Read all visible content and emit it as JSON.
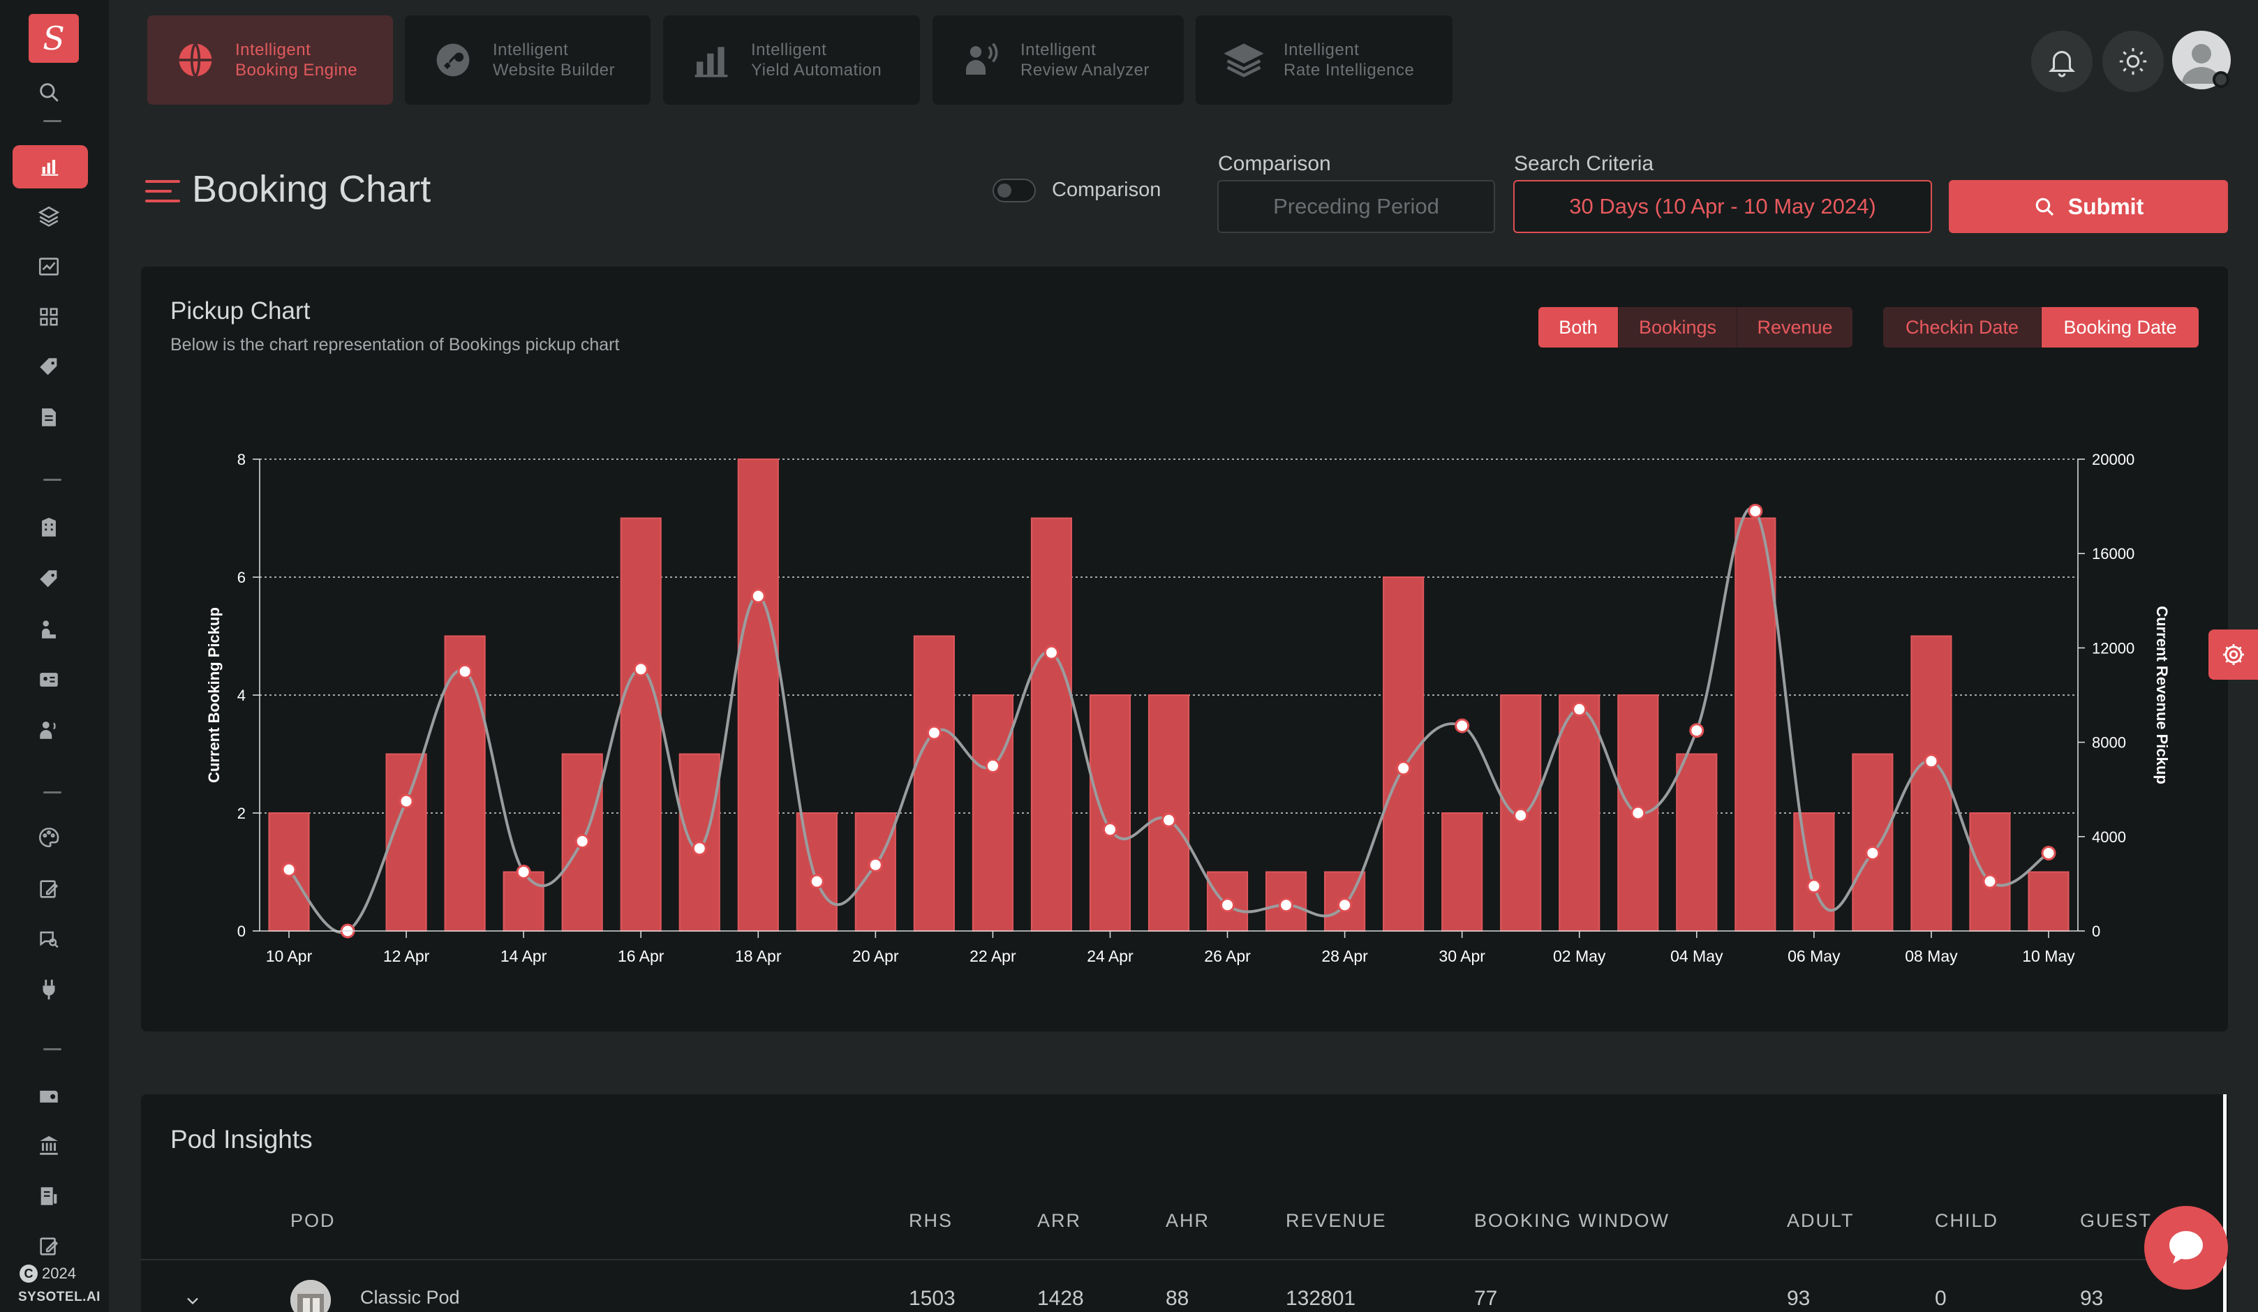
{
  "brand": {
    "copyright_year": "2024",
    "name": "SYSOTEL.AI"
  },
  "product_tabs": [
    {
      "line1": "Intelligent",
      "line2": "Booking Engine",
      "icon": "globe-icon",
      "active": true
    },
    {
      "line1": "Intelligent",
      "line2": "Website Builder",
      "icon": "wrench-icon",
      "active": false
    },
    {
      "line1": "Intelligent",
      "line2": "Yield Automation",
      "icon": "bar-chart-icon",
      "active": false
    },
    {
      "line1": "Intelligent",
      "line2": "Review Analyzer",
      "icon": "speaker-person-icon",
      "active": false
    },
    {
      "line1": "Intelligent",
      "line2": "Rate Intelligence",
      "icon": "layers-icon",
      "active": false
    }
  ],
  "page": {
    "title": "Booking Chart"
  },
  "filters": {
    "comparison_toggle_label": "Comparison",
    "comparison_label": "Comparison",
    "comparison_placeholder": "Preceding Period",
    "search_label": "Search Criteria",
    "search_value": "30 Days (10 Apr - 10 May 2024)",
    "submit_label": "Submit"
  },
  "chart_card": {
    "title": "Pickup Chart",
    "subtitle": "Below is the chart representation of Bookings pickup chart",
    "metric_buttons": [
      "Both",
      "Bookings",
      "Revenue"
    ],
    "metric_selected": "Both",
    "date_buttons": [
      "Checkin Date",
      "Booking Date"
    ],
    "date_selected": "Booking Date"
  },
  "chart_data": {
    "type": "bar",
    "ylabel": "Current Booking Pickup",
    "y2label": "Current Revenue Pickup",
    "ylim": [
      0,
      8
    ],
    "y2lim": [
      0,
      20000
    ],
    "yticks": [
      0,
      2,
      4,
      6,
      8
    ],
    "y2ticks": [
      0,
      4000,
      8000,
      12000,
      16000,
      20000
    ],
    "x_tick_labels": [
      "10 Apr",
      "12 Apr",
      "14 Apr",
      "16 Apr",
      "18 Apr",
      "20 Apr",
      "22 Apr",
      "24 Apr",
      "26 Apr",
      "28 Apr",
      "30 Apr",
      "02 May",
      "04 May",
      "06 May",
      "08 May",
      "10 May"
    ],
    "categories": [
      "10 Apr",
      "11 Apr",
      "12 Apr",
      "13 Apr",
      "14 Apr",
      "15 Apr",
      "16 Apr",
      "17 Apr",
      "18 Apr",
      "19 Apr",
      "20 Apr",
      "21 Apr",
      "22 Apr",
      "23 Apr",
      "24 Apr",
      "25 Apr",
      "26 Apr",
      "27 Apr",
      "28 Apr",
      "29 Apr",
      "30 Apr",
      "01 May",
      "02 May",
      "03 May",
      "04 May",
      "05 May",
      "06 May",
      "07 May",
      "08 May",
      "09 May",
      "10 May"
    ],
    "series": [
      {
        "type": "bar",
        "axis": "left",
        "values": [
          2,
          0,
          3,
          5,
          1,
          3,
          7,
          3,
          8,
          2,
          2,
          5,
          4,
          7,
          4,
          4,
          1,
          1,
          1,
          6,
          2,
          4,
          4,
          4,
          3,
          7,
          2,
          3,
          5,
          2,
          1
        ]
      },
      {
        "type": "line",
        "axis": "right",
        "values": [
          2600,
          0,
          5500,
          11000,
          2500,
          3800,
          11100,
          3500,
          14200,
          2100,
          2800,
          8400,
          7000,
          11800,
          4300,
          4700,
          1100,
          1100,
          1100,
          6900,
          8700,
          4900,
          9400,
          5000,
          8500,
          17800,
          1900,
          3300,
          7200,
          2100,
          3300
        ]
      }
    ],
    "grid": true,
    "colors": {
      "bar": "#cc4a4e",
      "bar_edge": "#e0575b",
      "line": "#9a9d9f",
      "point_fill": "#ffffff",
      "point_edge": "#e04f53"
    }
  },
  "pod_insights": {
    "title": "Pod Insights",
    "columns": [
      "POD",
      "RHS",
      "ARR",
      "AHR",
      "REVENUE",
      "BOOKING WINDOW",
      "ADULT",
      "CHILD",
      "GUEST"
    ],
    "rows": [
      {
        "pod": "Classic Pod",
        "rhs": "1503",
        "arr": "1428",
        "ahr": "88",
        "revenue": "132801",
        "booking_window": "77",
        "adult": "93",
        "child": "0",
        "guest": "93"
      }
    ]
  },
  "colors": {
    "accent": "#e04f53",
    "background": "#222526",
    "panel": "#151819",
    "sidebar": "#161a1b"
  }
}
